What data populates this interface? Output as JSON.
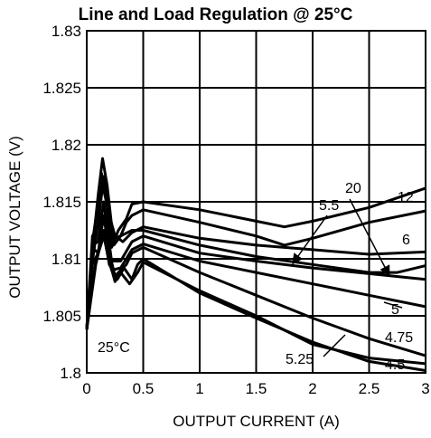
{
  "chart_data": {
    "type": "line",
    "title": "Line and Load Regulation @ 25°C",
    "xlabel": "OUTPUT CURRENT (A)",
    "ylabel": "OUTPUT VOLTAGE (V)",
    "xlim": [
      0,
      3
    ],
    "ylim": [
      1.8,
      1.83
    ],
    "x_ticks": [
      "0",
      "0.5",
      "1",
      "1.5",
      "2",
      "2.5",
      "3"
    ],
    "y_ticks": [
      "1.8",
      "1.805",
      "1.81",
      "1.815",
      "1.82",
      "1.825",
      "1.83"
    ],
    "grid": true,
    "annotation": "25°C",
    "series": [
      {
        "name": "12",
        "points": [
          [
            0,
            1.8038
          ],
          [
            0.05,
            1.8115
          ],
          [
            0.1,
            1.8148
          ],
          [
            0.13,
            1.8175
          ],
          [
            0.17,
            1.816
          ],
          [
            0.22,
            1.811
          ],
          [
            0.28,
            1.8125
          ],
          [
            0.35,
            1.8135
          ],
          [
            0.4,
            1.8148
          ],
          [
            0.5,
            1.815
          ],
          [
            1,
            1.8143
          ],
          [
            1.5,
            1.8133
          ],
          [
            1.75,
            1.8128
          ],
          [
            2,
            1.8133
          ],
          [
            2.5,
            1.8145
          ],
          [
            3,
            1.8162
          ]
        ]
      },
      {
        "name": "6",
        "points": [
          [
            0,
            1.8038
          ],
          [
            0.05,
            1.8108
          ],
          [
            0.1,
            1.8155
          ],
          [
            0.14,
            1.8188
          ],
          [
            0.18,
            1.8165
          ],
          [
            0.24,
            1.8112
          ],
          [
            0.3,
            1.812
          ],
          [
            0.35,
            1.8132
          ],
          [
            0.4,
            1.8138
          ],
          [
            0.5,
            1.8143
          ],
          [
            1,
            1.8132
          ],
          [
            1.5,
            1.812
          ],
          [
            1.75,
            1.8112
          ],
          [
            2,
            1.8118
          ],
          [
            2.5,
            1.8132
          ],
          [
            3,
            1.8142
          ]
        ]
      },
      {
        "name": "5.5",
        "points": [
          [
            0,
            1.8038
          ],
          [
            0.05,
            1.812
          ],
          [
            0.1,
            1.8128
          ],
          [
            0.14,
            1.8165
          ],
          [
            0.2,
            1.8138
          ],
          [
            0.25,
            1.812
          ],
          [
            0.32,
            1.8115
          ],
          [
            0.4,
            1.8123
          ],
          [
            0.5,
            1.8128
          ],
          [
            1,
            1.8118
          ],
          [
            1.5,
            1.8112
          ],
          [
            2,
            1.8108
          ],
          [
            2.5,
            1.8104
          ],
          [
            3,
            1.8106
          ]
        ]
      },
      {
        "name": "20",
        "points": [
          [
            0,
            1.8038
          ],
          [
            0.05,
            1.8098
          ],
          [
            0.1,
            1.8132
          ],
          [
            0.15,
            1.8172
          ],
          [
            0.2,
            1.8128
          ],
          [
            0.25,
            1.8118
          ],
          [
            0.3,
            1.812
          ],
          [
            0.4,
            1.8125
          ],
          [
            0.5,
            1.8125
          ],
          [
            1,
            1.8112
          ],
          [
            1.5,
            1.8102
          ],
          [
            2,
            1.8095
          ],
          [
            2.5,
            1.8088
          ],
          [
            2.75,
            1.8088
          ],
          [
            3,
            1.8094
          ]
        ]
      },
      {
        "name": "5",
        "points": [
          [
            0,
            1.8038
          ],
          [
            0.05,
            1.8112
          ],
          [
            0.1,
            1.8115
          ],
          [
            0.15,
            1.815
          ],
          [
            0.22,
            1.8098
          ],
          [
            0.3,
            1.8098
          ],
          [
            0.4,
            1.8115
          ],
          [
            0.5,
            1.812
          ],
          [
            1,
            1.8105
          ],
          [
            1.5,
            1.8098
          ],
          [
            2,
            1.8092
          ],
          [
            2.5,
            1.8087
          ],
          [
            3,
            1.8082
          ]
        ]
      },
      {
        "name": "",
        "points": [
          [
            0,
            1.8038
          ],
          [
            0.05,
            1.8095
          ],
          [
            0.1,
            1.8105
          ],
          [
            0.15,
            1.8138
          ],
          [
            0.22,
            1.809
          ],
          [
            0.3,
            1.8092
          ],
          [
            0.4,
            1.8108
          ],
          [
            0.5,
            1.8113
          ],
          [
            1,
            1.8098
          ],
          [
            1.5,
            1.8088
          ],
          [
            2,
            1.8078
          ],
          [
            2.5,
            1.8068
          ],
          [
            3,
            1.8058
          ]
        ]
      },
      {
        "name": "4.75",
        "points": [
          [
            0,
            1.8038
          ],
          [
            0.08,
            1.8095
          ],
          [
            0.15,
            1.8125
          ],
          [
            0.25,
            1.8085
          ],
          [
            0.35,
            1.8095
          ],
          [
            0.4,
            1.8105
          ],
          [
            0.5,
            1.811
          ],
          [
            1,
            1.8088
          ],
          [
            1.5,
            1.8068
          ],
          [
            2,
            1.8048
          ],
          [
            2.5,
            1.803
          ],
          [
            3,
            1.8015
          ]
        ]
      },
      {
        "name": "5.25",
        "points": [
          [
            0,
            1.8038
          ],
          [
            0.08,
            1.8098
          ],
          [
            0.15,
            1.812
          ],
          [
            0.2,
            1.8098
          ],
          [
            0.25,
            1.808
          ],
          [
            0.3,
            1.8088
          ],
          [
            0.38,
            1.8078
          ],
          [
            0.45,
            1.8088
          ],
          [
            0.5,
            1.8097
          ],
          [
            1,
            1.8072
          ],
          [
            1.5,
            1.805
          ],
          [
            2,
            1.8025
          ],
          [
            2.5,
            1.8013
          ],
          [
            3,
            1.8008
          ]
        ]
      },
      {
        "name": "4.5",
        "points": [
          [
            0,
            1.8038
          ],
          [
            0.05,
            1.811
          ],
          [
            0.1,
            1.8105
          ],
          [
            0.15,
            1.8122
          ],
          [
            0.2,
            1.8095
          ],
          [
            0.27,
            1.8082
          ],
          [
            0.33,
            1.8092
          ],
          [
            0.4,
            1.8082
          ],
          [
            0.45,
            1.8095
          ],
          [
            0.5,
            1.81
          ],
          [
            1,
            1.807
          ],
          [
            1.5,
            1.8048
          ],
          [
            2,
            1.8027
          ],
          [
            2.5,
            1.801
          ],
          [
            3,
            1.8002
          ]
        ]
      }
    ]
  }
}
